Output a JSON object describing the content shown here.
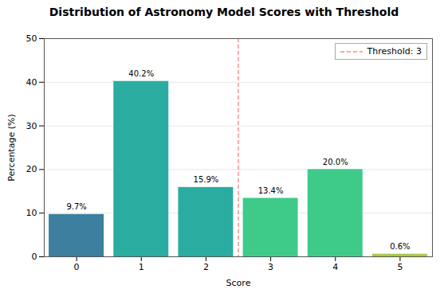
{
  "chart_data": {
    "type": "bar",
    "title": "Distribution of Astronomy Model Scores with Threshold",
    "xlabel": "Score",
    "ylabel": "Percentage (%)",
    "categories": [
      0,
      1,
      2,
      3,
      4,
      5
    ],
    "values": [
      9.7,
      40.2,
      15.9,
      13.4,
      20.0,
      0.6
    ],
    "colors": [
      "#3d7f9f",
      "#2aada0",
      "#2aada0",
      "#3ecb8a",
      "#3ecb8a",
      "#a8c84a"
    ],
    "data_labels": true,
    "value_labels": [
      "9.7%",
      "40.2%",
      "15.9%",
      "13.4%",
      "20.0%",
      "0.6%"
    ],
    "ylim": [
      0,
      50
    ],
    "yticks": [
      0,
      10,
      20,
      30,
      40,
      50
    ],
    "grid": true,
    "threshold": {
      "x": 2.5,
      "label": "Threshold: 3",
      "color": "#ff8888"
    },
    "legend": "upper right"
  }
}
